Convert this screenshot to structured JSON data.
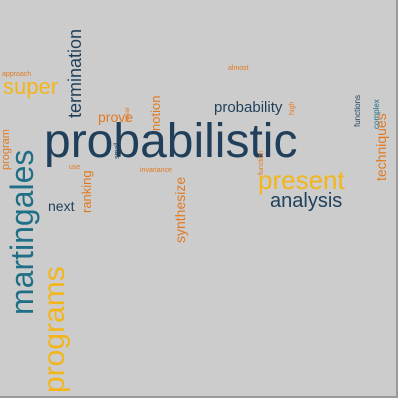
{
  "colors": {
    "background": "#cccccc",
    "navy": "#1f3f5a",
    "teal": "#1f6f86",
    "gold": "#f2b51b",
    "orange": "#e07a22"
  },
  "words": [
    {
      "text": "probabilistic",
      "color": "navy"
    },
    {
      "text": "martingales",
      "color": "teal"
    },
    {
      "text": "programs",
      "color": "gold"
    },
    {
      "text": "present",
      "color": "gold"
    },
    {
      "text": "analysis",
      "color": "navy"
    },
    {
      "text": "termination",
      "color": "navy"
    },
    {
      "text": "super",
      "color": "gold"
    },
    {
      "text": "probability",
      "color": "navy"
    },
    {
      "text": "techniques",
      "color": "orange"
    },
    {
      "text": "next",
      "color": "navy"
    },
    {
      "text": "ranking",
      "color": "orange"
    },
    {
      "text": "prove",
      "color": "orange"
    },
    {
      "text": "notion",
      "color": "orange"
    },
    {
      "text": "synthesize",
      "color": "orange"
    },
    {
      "text": "program",
      "color": "orange"
    },
    {
      "text": "approach",
      "color": "orange"
    },
    {
      "text": "small",
      "color": "navy"
    },
    {
      "text": "use",
      "color": "orange"
    },
    {
      "text": "invariance",
      "color": "orange"
    },
    {
      "text": "almost",
      "color": "orange"
    },
    {
      "text": "high",
      "color": "orange"
    },
    {
      "text": "functions",
      "color": "navy"
    },
    {
      "text": "complex",
      "color": "teal"
    },
    {
      "text": "function",
      "color": "orange"
    },
    {
      "text": "linear",
      "color": "orange"
    }
  ]
}
